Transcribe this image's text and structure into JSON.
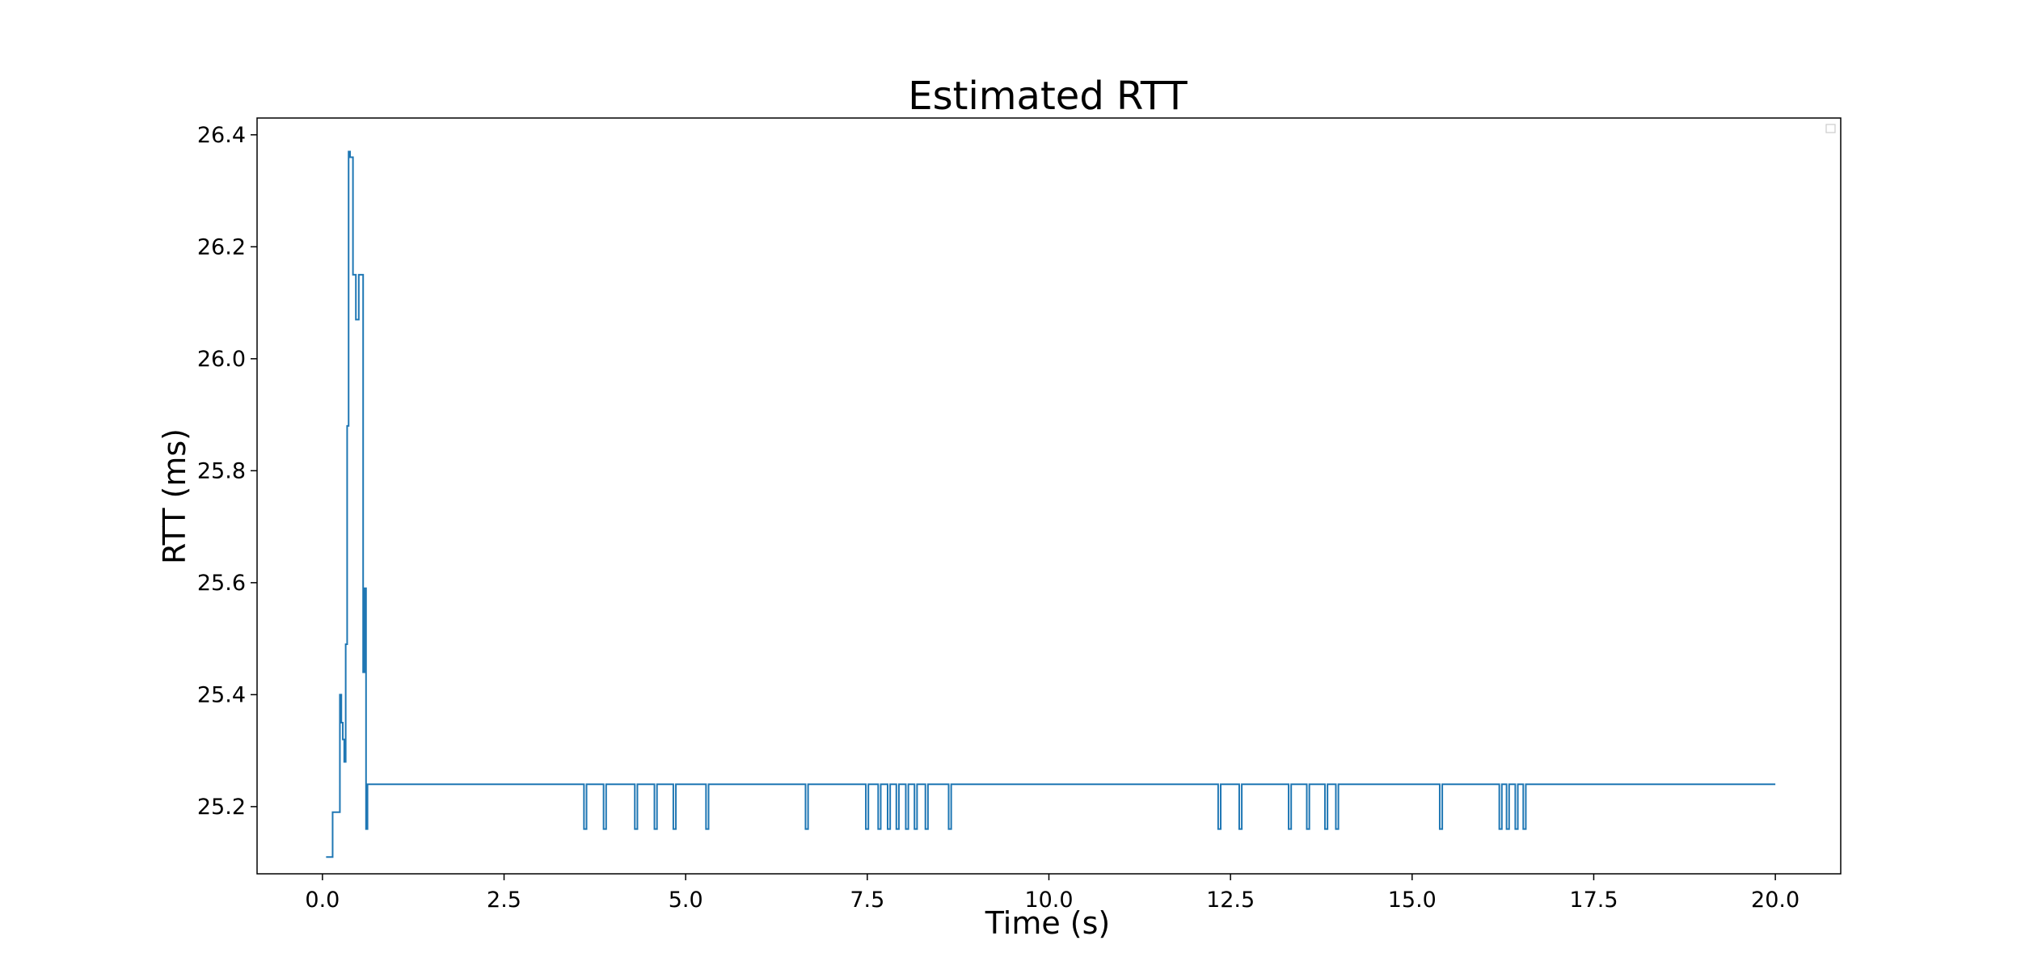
{
  "chart_data": {
    "type": "line",
    "title": "Estimated RTT",
    "xlabel": "Time (s)",
    "ylabel": "RTT (ms)",
    "xlim": [
      -0.9,
      20.9
    ],
    "ylim": [
      25.08,
      26.43
    ],
    "x_ticks": [
      0.0,
      2.5,
      5.0,
      7.5,
      10.0,
      12.5,
      15.0,
      17.5,
      20.0
    ],
    "x_tick_labels": [
      "0.0",
      "2.5",
      "5.0",
      "7.5",
      "10.0",
      "12.5",
      "15.0",
      "17.5",
      "20.0"
    ],
    "y_ticks": [
      25.2,
      25.4,
      25.6,
      25.8,
      26.0,
      26.2,
      26.4
    ],
    "y_tick_labels": [
      "25.2",
      "25.4",
      "25.6",
      "25.8",
      "26.0",
      "26.2",
      "26.4"
    ],
    "grid": false,
    "legend": {
      "placement": "top-right",
      "entries": []
    },
    "series": [
      {
        "color": "#1f77b4",
        "step": true,
        "baseline": 25.24,
        "dip_value": 25.16,
        "dip_times": [
          3.6,
          3.87,
          4.3,
          4.57,
          4.83,
          5.28,
          6.65,
          7.48,
          7.65,
          7.78,
          7.9,
          8.03,
          8.15,
          8.3,
          8.62,
          12.33,
          12.62,
          13.3,
          13.55,
          13.8,
          13.95,
          15.38,
          16.2,
          16.3,
          16.42,
          16.53
        ],
        "x": [
          0.05,
          0.14,
          0.14,
          0.24,
          0.24,
          0.26,
          0.26,
          0.28,
          0.28,
          0.3,
          0.3,
          0.32,
          0.32,
          0.34,
          0.34,
          0.36,
          0.36,
          0.38,
          0.38,
          0.42,
          0.42,
          0.46,
          0.46,
          0.5,
          0.5,
          0.52,
          0.52,
          0.56,
          0.56,
          0.58,
          0.58,
          0.6,
          0.6,
          0.62,
          0.62,
          0.64,
          0.64,
          0.66,
          0.66,
          20.0
        ],
        "y": [
          25.11,
          25.11,
          25.19,
          25.19,
          25.4,
          25.4,
          25.35,
          25.35,
          25.32,
          25.32,
          25.28,
          25.28,
          25.49,
          25.49,
          25.88,
          25.88,
          26.37,
          26.37,
          26.36,
          26.36,
          26.15,
          26.15,
          26.07,
          26.07,
          26.15,
          26.15,
          26.15,
          26.15,
          25.44,
          25.44,
          25.59,
          25.59,
          25.16,
          25.16,
          25.24,
          25.24,
          25.24,
          25.24,
          25.24,
          25.24
        ]
      }
    ]
  }
}
